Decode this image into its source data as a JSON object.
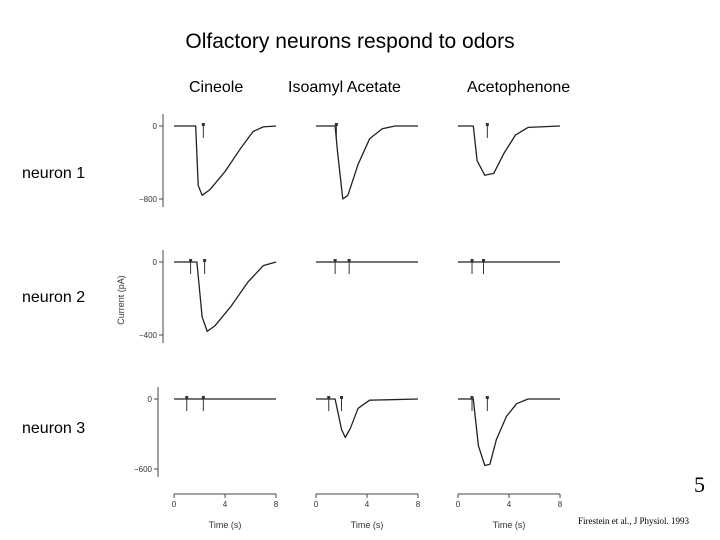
{
  "title": "Olfactory neurons respond to odors",
  "slide_number": "5",
  "citation": "Firestein et al., J Physiol. 1993",
  "chart_data": {
    "type": "line",
    "title": "Olfactory neurons respond to odors",
    "columns": [
      "Cineole",
      "Isoamyl Acetate",
      "Acetophenone"
    ],
    "rows": [
      "neuron 1",
      "neuron 2",
      "neuron 3"
    ],
    "xlabel": "Time (s)",
    "ylabel": "Current (pA)",
    "xlim": [
      0,
      8
    ],
    "xticks": [
      "0",
      "4",
      "8"
    ],
    "row_axes": [
      {
        "ymin": -800,
        "ticks": [
          "0",
          "−800"
        ]
      },
      {
        "ymin": -400,
        "ticks": [
          "0",
          "−400"
        ]
      },
      {
        "ymin": -600,
        "ticks": [
          "0",
          "−600"
        ]
      }
    ],
    "traces": [
      {
        "row": 0,
        "col": 0,
        "time_s": [
          0,
          1.7,
          1.9,
          2.2,
          2.8,
          4,
          5.2,
          6.2,
          7,
          8
        ],
        "current_pA": [
          0,
          0,
          -650,
          -760,
          -700,
          -500,
          -250,
          -60,
          -10,
          0
        ]
      },
      {
        "row": 0,
        "col": 1,
        "time_s": [
          0,
          1.5,
          1.7,
          2.1,
          2.5,
          3.3,
          4.2,
          5.2,
          6.2,
          8
        ],
        "current_pA": [
          0,
          0,
          -300,
          -800,
          -760,
          -420,
          -140,
          -30,
          0,
          0
        ]
      },
      {
        "row": 0,
        "col": 2,
        "time_s": [
          0,
          1.2,
          1.5,
          2.1,
          2.8,
          3.6,
          4.5,
          5.5,
          8
        ],
        "current_pA": [
          0,
          0,
          -380,
          -540,
          -520,
          -300,
          -100,
          -15,
          0
        ]
      },
      {
        "row": 1,
        "col": 0,
        "time_s": [
          0,
          1.8,
          2.2,
          2.6,
          3.2,
          4.5,
          5.8,
          7,
          8
        ],
        "current_pA": [
          0,
          0,
          -300,
          -380,
          -350,
          -240,
          -110,
          -20,
          0
        ]
      },
      {
        "row": 1,
        "col": 1,
        "time_s": [
          0,
          8
        ],
        "current_pA": [
          0,
          0
        ]
      },
      {
        "row": 1,
        "col": 2,
        "time_s": [
          0,
          8
        ],
        "current_pA": [
          0,
          0
        ]
      },
      {
        "row": 2,
        "col": 0,
        "time_s": [
          0,
          8
        ],
        "current_pA": [
          0,
          0
        ]
      },
      {
        "row": 2,
        "col": 1,
        "time_s": [
          0,
          1.5,
          2,
          2.3,
          2.7,
          3.3,
          4.2,
          8
        ],
        "current_pA": [
          0,
          0,
          -260,
          -330,
          -250,
          -80,
          -10,
          0
        ]
      },
      {
        "row": 2,
        "col": 2,
        "time_s": [
          0,
          1.2,
          1.6,
          2.1,
          2.5,
          3,
          3.8,
          4.6,
          5.5,
          8
        ],
        "current_pA": [
          0,
          0,
          -400,
          -570,
          -560,
          -350,
          -150,
          -40,
          0,
          0
        ]
      }
    ],
    "stimulus_times_s": [
      {
        "row": 0,
        "col": 0,
        "times": [
          2.3
        ]
      },
      {
        "row": 0,
        "col": 1,
        "times": [
          1.6
        ]
      },
      {
        "row": 0,
        "col": 2,
        "times": [
          2.3
        ]
      },
      {
        "row": 1,
        "col": 0,
        "times": [
          1.3,
          2.4
        ]
      },
      {
        "row": 1,
        "col": 1,
        "times": [
          1.5,
          2.6
        ]
      },
      {
        "row": 1,
        "col": 2,
        "times": [
          1.1,
          2.0
        ]
      },
      {
        "row": 2,
        "col": 0,
        "times": [
          1.0,
          2.3
        ]
      },
      {
        "row": 2,
        "col": 1,
        "times": [
          1.0,
          2.0
        ]
      },
      {
        "row": 2,
        "col": 2,
        "times": [
          1.1,
          2.3
        ]
      }
    ]
  }
}
